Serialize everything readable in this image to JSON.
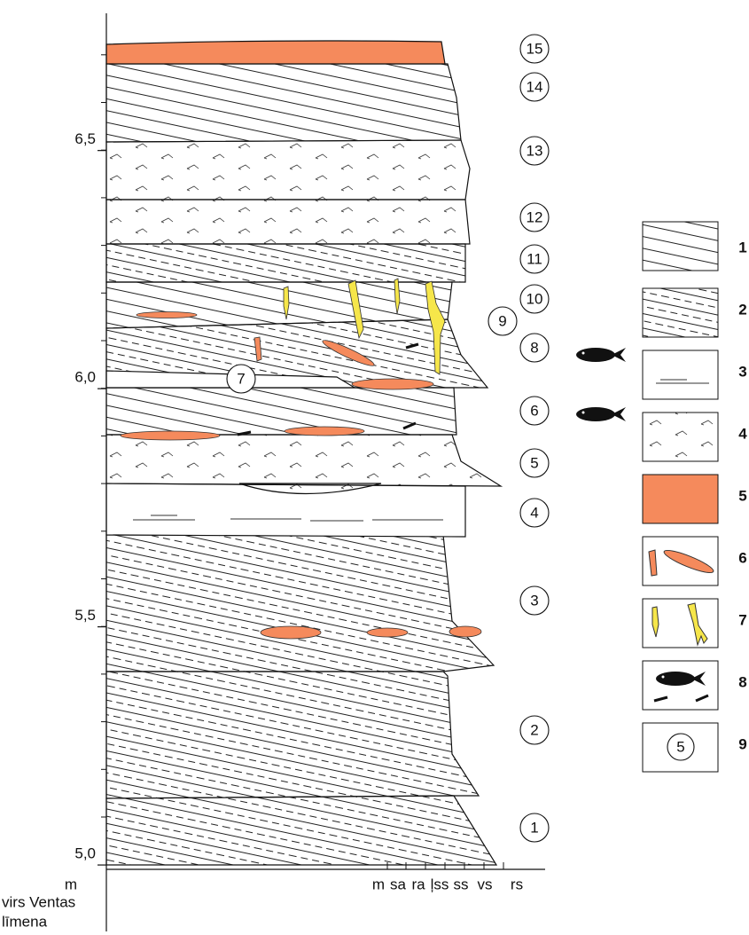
{
  "axis": {
    "unit": "m",
    "label": [
      "virs Ventas",
      "līmena"
    ],
    "ylim": [
      4.853,
      6.816
    ],
    "yticks": [
      {
        "value": 5.0,
        "label": "5,0"
      },
      {
        "value": 5.5,
        "label": "5,5"
      },
      {
        "value": 6.0,
        "label": "6,0"
      },
      {
        "value": 6.5,
        "label": "6,5"
      }
    ]
  },
  "grain_sizes": [
    "m",
    "sa",
    "ra",
    "ļss",
    "ss",
    "vs",
    "rs"
  ],
  "layers": [
    "1",
    "2",
    "3",
    "4",
    "5",
    "6",
    "7",
    "8",
    "9",
    "10",
    "11",
    "12",
    "13",
    "14",
    "15"
  ],
  "legend": [
    "1",
    "2",
    "3",
    "4",
    "5",
    "6",
    "7",
    "8",
    "9"
  ],
  "legend_sample": "5"
}
